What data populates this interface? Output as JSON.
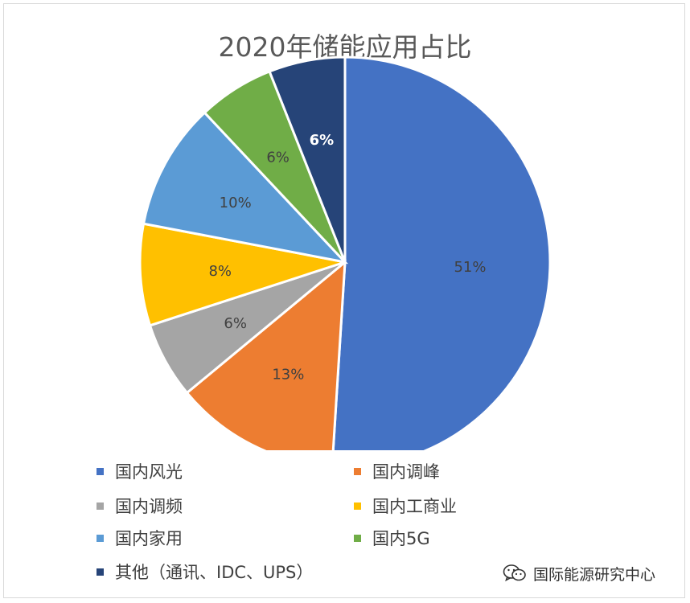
{
  "chart_data": {
    "type": "pie",
    "title": "2020年储能应用占比",
    "categories": [
      "国内风光",
      "国内调峰",
      "国内调频",
      "国内工商业",
      "国内家用",
      "国内5G",
      "其他（通讯、IDC、UPS）"
    ],
    "values": [
      51,
      13,
      6,
      8,
      10,
      6,
      6
    ],
    "value_labels": [
      "51%",
      "13%",
      "6%",
      "8%",
      "10%",
      "6%",
      "6%"
    ],
    "colors": [
      "#4472c4",
      "#ed7d31",
      "#a5a5a5",
      "#ffc000",
      "#5b9bd5",
      "#70ad47",
      "#264478"
    ],
    "label_colors": [
      "#404040",
      "#404040",
      "#404040",
      "#404040",
      "#404040",
      "#404040",
      "#ffffff"
    ],
    "start_angle_deg": 0,
    "direction": "clockwise",
    "legend_position": "bottom"
  },
  "watermark": {
    "icon": "wechat-icon",
    "text": "国际能源研究中心"
  }
}
